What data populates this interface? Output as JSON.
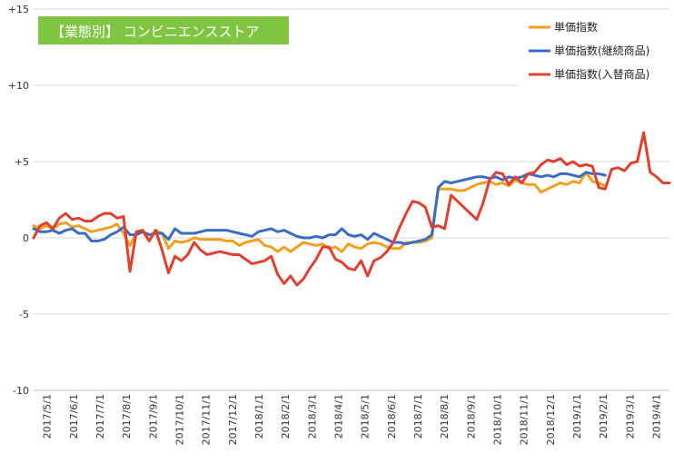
{
  "chart_data": {
    "type": "line",
    "title": "【業態別】 コンビニエンスストア",
    "title_bg": "#7fc542",
    "title_color": "#ffffff",
    "ylim": [
      -10,
      15
    ],
    "yticks": [
      15,
      10,
      5,
      0,
      -5,
      -10
    ],
    "ytick_labels": [
      "+15",
      "+10",
      "+5",
      "0",
      "-5",
      "-10"
    ],
    "grid": "horizontal",
    "legend_position": "top-right",
    "x_tick_labels": [
      "2017/5/1",
      "2017/6/1",
      "2017/7/1",
      "2017/8/1",
      "2017/9/1",
      "2017/10/1",
      "2017/11/1",
      "2017/12/1",
      "2018/1/1",
      "2018/2/1",
      "2018/3/1",
      "2018/4/1",
      "2018/5/1",
      "2018/6/1",
      "2018/7/1",
      "2018/8/1",
      "2018/9/1",
      "2018/10/1",
      "2018/11/1",
      "2018/12/1",
      "2019/1/1",
      "2019/2/1",
      "2019/3/1",
      "2019/4/1"
    ],
    "series": [
      {
        "name": "単価指数",
        "color": "#f0a020",
        "values": [
          0.8,
          0.6,
          0.8,
          0.6,
          0.9,
          1.0,
          0.7,
          0.8,
          0.6,
          0.4,
          0.5,
          0.6,
          0.7,
          0.9,
          0.3,
          -0.5,
          0.3,
          0.4,
          -0.2,
          0.5,
          0.3,
          -0.7,
          -0.2,
          -0.3,
          -0.2,
          0.0,
          -0.1,
          -0.1,
          -0.1,
          -0.1,
          -0.2,
          -0.2,
          -0.5,
          -0.3,
          -0.2,
          -0.1,
          -0.5,
          -0.6,
          -0.9,
          -0.6,
          -0.9,
          -0.6,
          -0.3,
          -0.4,
          -0.5,
          -0.4,
          -0.7,
          -0.6,
          -0.9,
          -0.4,
          -0.6,
          -0.7,
          -0.4,
          -0.3,
          -0.4,
          -0.6,
          -0.7,
          -0.7,
          -0.3,
          -0.3,
          -0.3,
          -0.2,
          0.0,
          3.2,
          3.2,
          3.2,
          3.1,
          3.1,
          3.3,
          3.5,
          3.6,
          3.7,
          3.5,
          3.6,
          3.4,
          3.8,
          3.6,
          3.5,
          3.5,
          3.0,
          3.2,
          3.4,
          3.6,
          3.5,
          3.7,
          3.6,
          4.3,
          3.7,
          3.6,
          3.4
        ]
      },
      {
        "name": "単価指数(継続商品)",
        "color": "#3b6cc4",
        "values": [
          0.6,
          0.4,
          0.4,
          0.5,
          0.3,
          0.5,
          0.6,
          0.3,
          0.3,
          -0.2,
          -0.2,
          -0.1,
          0.2,
          0.4,
          0.7,
          0.2,
          0.2,
          0.4,
          0.2,
          0.3,
          0.3,
          -0.1,
          0.6,
          0.3,
          0.3,
          0.3,
          0.4,
          0.5,
          0.5,
          0.5,
          0.5,
          0.4,
          0.3,
          0.2,
          0.1,
          0.4,
          0.5,
          0.6,
          0.4,
          0.5,
          0.3,
          0.1,
          0.0,
          0.0,
          0.1,
          0.0,
          0.2,
          0.2,
          0.6,
          0.2,
          0.1,
          0.2,
          -0.1,
          0.3,
          0.1,
          -0.1,
          -0.3,
          -0.3,
          -0.4,
          -0.3,
          -0.2,
          -0.1,
          0.2,
          3.3,
          3.7,
          3.6,
          3.7,
          3.8,
          3.9,
          4.0,
          4.0,
          3.9,
          4.0,
          3.8,
          4.0,
          3.9,
          4.0,
          4.2,
          4.1,
          4.0,
          4.1,
          4.0,
          4.2,
          4.2,
          4.1,
          4.0,
          4.3,
          4.2,
          4.2,
          4.1
        ]
      },
      {
        "name": "単価指数(入替商品)",
        "color": "#e04030",
        "values": [
          0.0,
          0.8,
          1.0,
          0.6,
          1.3,
          1.6,
          1.2,
          1.3,
          1.1,
          1.1,
          1.4,
          1.6,
          1.6,
          1.3,
          1.4,
          -2.2,
          0.4,
          0.5,
          -0.2,
          0.5,
          -0.8,
          -2.3,
          -1.2,
          -1.5,
          -1.1,
          -0.3,
          -0.8,
          -1.1,
          -1.0,
          -0.9,
          -1.0,
          -1.1,
          -1.1,
          -1.4,
          -1.7,
          -1.6,
          -1.5,
          -1.2,
          -2.4,
          -3.0,
          -2.5,
          -3.1,
          -2.7,
          -2.0,
          -1.4,
          -0.6,
          -0.6,
          -1.4,
          -1.6,
          -2.0,
          -2.1,
          -1.5,
          -2.5,
          -1.5,
          -1.3,
          -0.9,
          -0.3,
          0.7,
          1.6,
          2.4,
          2.3,
          2.0,
          0.7,
          0.8,
          0.6,
          2.8,
          2.4,
          2.0,
          1.6,
          1.2,
          2.3,
          3.8,
          4.3,
          4.2,
          3.5,
          4.0,
          3.6,
          4.2,
          4.3,
          4.8,
          5.1,
          5.0,
          5.2,
          4.8,
          5.0,
          4.7,
          4.8,
          4.7,
          3.3,
          3.2,
          4.5,
          4.6,
          4.4,
          4.9,
          5.0,
          6.9,
          4.3,
          4.0,
          3.6,
          3.6
        ]
      }
    ]
  }
}
